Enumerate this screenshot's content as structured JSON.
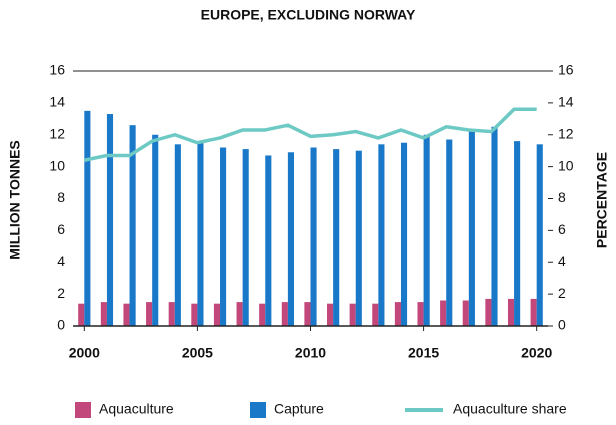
{
  "chart_data": {
    "type": "bar",
    "title": "EUROPE, EXCLUDING NORWAY",
    "y_label": "MILLION TONNES",
    "y2_label": "PERCENTAGE",
    "x": [
      2000,
      2001,
      2002,
      2003,
      2004,
      2005,
      2006,
      2007,
      2008,
      2009,
      2010,
      2011,
      2012,
      2013,
      2014,
      2015,
      2016,
      2017,
      2018,
      2019,
      2020
    ],
    "xlim": [
      1999.5,
      2020.5
    ],
    "xticks": [
      2000,
      2005,
      2010,
      2015,
      2020
    ],
    "ylim": [
      0,
      16
    ],
    "yticks": [
      0,
      2,
      4,
      6,
      8,
      10,
      12,
      14,
      16
    ],
    "y2lim": [
      0,
      16
    ],
    "y2ticks": [
      0,
      2,
      4,
      6,
      8,
      10,
      12,
      14,
      16
    ],
    "series": [
      {
        "name": "Aquaculture",
        "color": "#c2477a",
        "values": [
          1.4,
          1.5,
          1.4,
          1.5,
          1.5,
          1.4,
          1.4,
          1.5,
          1.4,
          1.5,
          1.5,
          1.4,
          1.4,
          1.4,
          1.5,
          1.5,
          1.6,
          1.6,
          1.7,
          1.7,
          1.7
        ]
      },
      {
        "name": "Capture",
        "color": "#1a78c8",
        "values": [
          13.5,
          13.3,
          12.6,
          12.0,
          11.4,
          11.5,
          11.2,
          11.1,
          10.7,
          10.9,
          11.2,
          11.1,
          11.0,
          11.4,
          11.5,
          12.0,
          11.7,
          12.2,
          12.5,
          11.6,
          11.4
        ]
      },
      {
        "name": "Aquaculture share",
        "color": "#6cc9c3",
        "type": "line",
        "axis": "y2",
        "values": [
          10.4,
          10.7,
          10.7,
          11.6,
          12.0,
          11.5,
          11.8,
          12.3,
          12.3,
          12.6,
          11.9,
          12.0,
          12.2,
          11.8,
          12.3,
          11.8,
          12.5,
          12.3,
          12.2,
          13.6,
          13.6
        ]
      }
    ]
  }
}
